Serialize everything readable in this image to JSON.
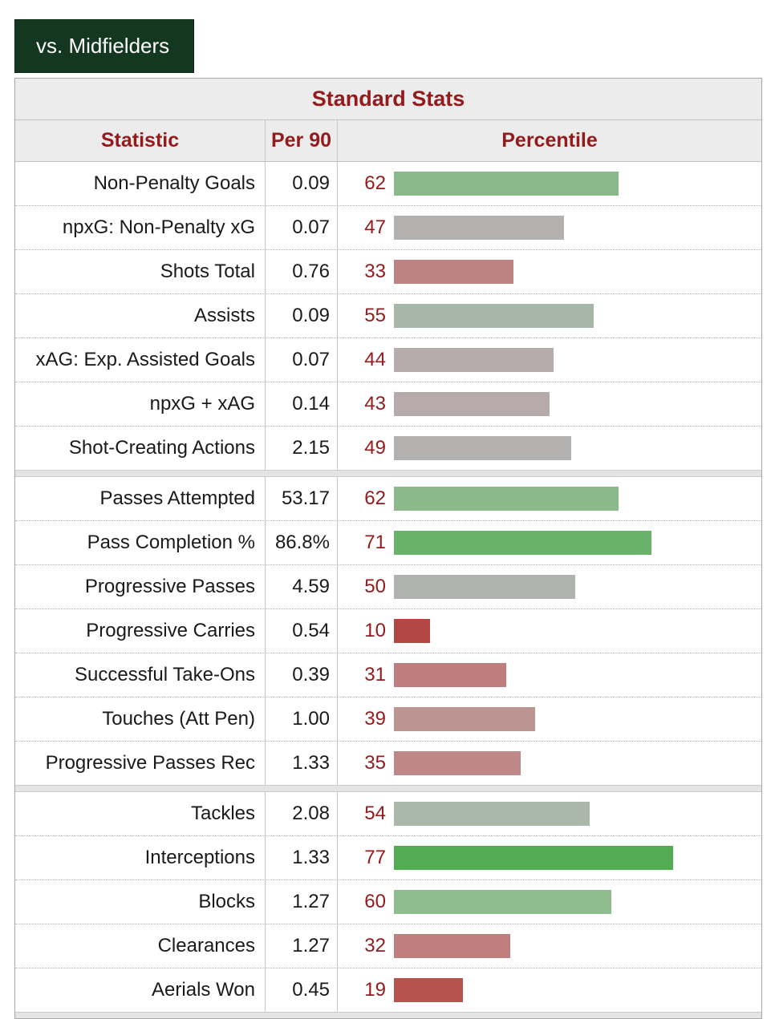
{
  "tab": {
    "label": "vs. Midfielders"
  },
  "colors": {
    "header_text": "#941a1c",
    "tab_background": "#14381f",
    "tab_text": "#ffffff",
    "high_percentile_green": "#52ad52",
    "mid_percentile_gray": "#b0b2ae",
    "low_percentile_red": "#b24743"
  },
  "table": {
    "title": "Standard Stats",
    "columns": {
      "statistic": "Statistic",
      "per90": "Per 90",
      "percentile": "Percentile"
    }
  },
  "chart_data": {
    "type": "bar",
    "title": "Standard Stats",
    "orientation": "horizontal",
    "percentile_range": [
      0,
      100
    ],
    "columns": [
      "Statistic",
      "Per 90",
      "Percentile"
    ],
    "sections": [
      {
        "rows": [
          {
            "stat": "Non-Penalty Goals",
            "per90": "0.09",
            "percentile": 62,
            "color": "#8bb98b"
          },
          {
            "stat": "npxG: Non-Penalty xG",
            "per90": "0.07",
            "percentile": 47,
            "color": "#b4b0ae"
          },
          {
            "stat": "Shots Total",
            "per90": "0.76",
            "percentile": 33,
            "color": "#bf8282"
          },
          {
            "stat": "Assists",
            "per90": "0.09",
            "percentile": 55,
            "color": "#a7b7a7"
          },
          {
            "stat": "xAG: Exp. Assisted Goals",
            "per90": "0.07",
            "percentile": 44,
            "color": "#b6acab"
          },
          {
            "stat": "npxG + xAG",
            "per90": "0.14",
            "percentile": 43,
            "color": "#b6abaa"
          },
          {
            "stat": "Shot-Creating Actions",
            "per90": "2.15",
            "percentile": 49,
            "color": "#b2b1af"
          }
        ]
      },
      {
        "rows": [
          {
            "stat": "Passes Attempted",
            "per90": "53.17",
            "percentile": 62,
            "color": "#8bb98b"
          },
          {
            "stat": "Pass Completion %",
            "per90": "86.8%",
            "percentile": 71,
            "color": "#69b269"
          },
          {
            "stat": "Progressive Passes",
            "per90": "4.59",
            "percentile": 50,
            "color": "#b0b2ae"
          },
          {
            "stat": "Progressive Carries",
            "per90": "0.54",
            "percentile": 10,
            "color": "#b24743"
          },
          {
            "stat": "Successful Take-Ons",
            "per90": "0.39",
            "percentile": 31,
            "color": "#c07d7d"
          },
          {
            "stat": "Touches (Att Pen)",
            "per90": "1.00",
            "percentile": 39,
            "color": "#bb9492"
          },
          {
            "stat": "Progressive Passes Rec",
            "per90": "1.33",
            "percentile": 35,
            "color": "#bd8887"
          }
        ]
      },
      {
        "rows": [
          {
            "stat": "Tackles",
            "per90": "2.08",
            "percentile": 54,
            "color": "#a9b8a9"
          },
          {
            "stat": "Interceptions",
            "per90": "1.33",
            "percentile": 77,
            "color": "#52ad52"
          },
          {
            "stat": "Blocks",
            "per90": "1.27",
            "percentile": 60,
            "color": "#90bd90"
          },
          {
            "stat": "Clearances",
            "per90": "1.27",
            "percentile": 32,
            "color": "#bf7f7f"
          },
          {
            "stat": "Aerials Won",
            "per90": "0.45",
            "percentile": 19,
            "color": "#b6514d"
          }
        ]
      }
    ]
  }
}
